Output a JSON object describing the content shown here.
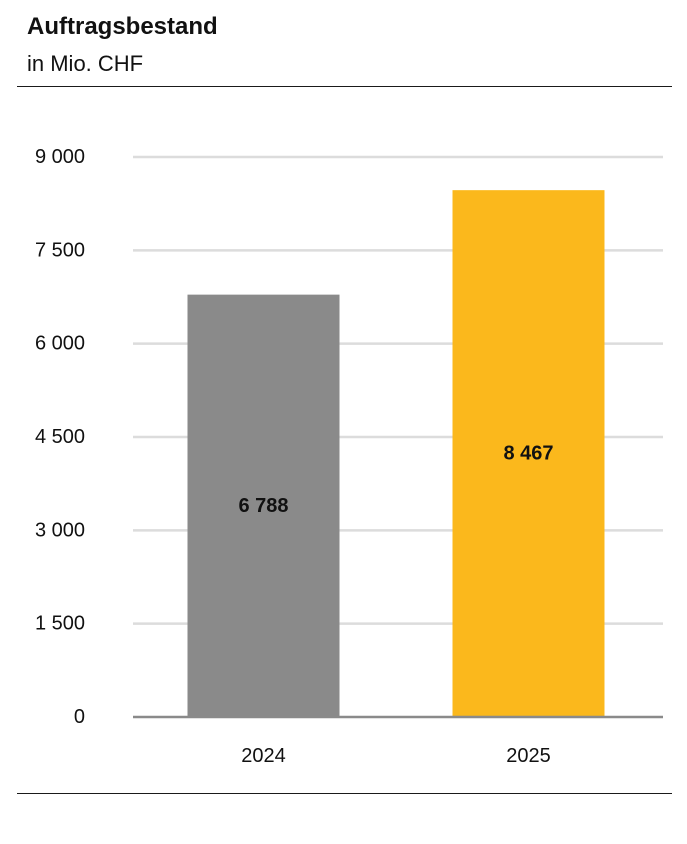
{
  "chart_data": {
    "type": "bar",
    "title": "Auftragsbestand",
    "subtitle": "in Mio. CHF",
    "categories": [
      "2024",
      "2025"
    ],
    "values": [
      6788,
      8467
    ],
    "value_labels": [
      "6 788",
      "8 467"
    ],
    "colors": [
      "#8a8a8a",
      "#fbb81c"
    ],
    "ylim": [
      0,
      9000
    ],
    "yticks": [
      0,
      1500,
      3000,
      4500,
      6000,
      7500,
      9000
    ],
    "ytick_labels": [
      "0",
      "1 500",
      "3 000",
      "4 500",
      "6 000",
      "7 500",
      "9 000"
    ],
    "grid": true,
    "xlabel": "",
    "ylabel": ""
  }
}
